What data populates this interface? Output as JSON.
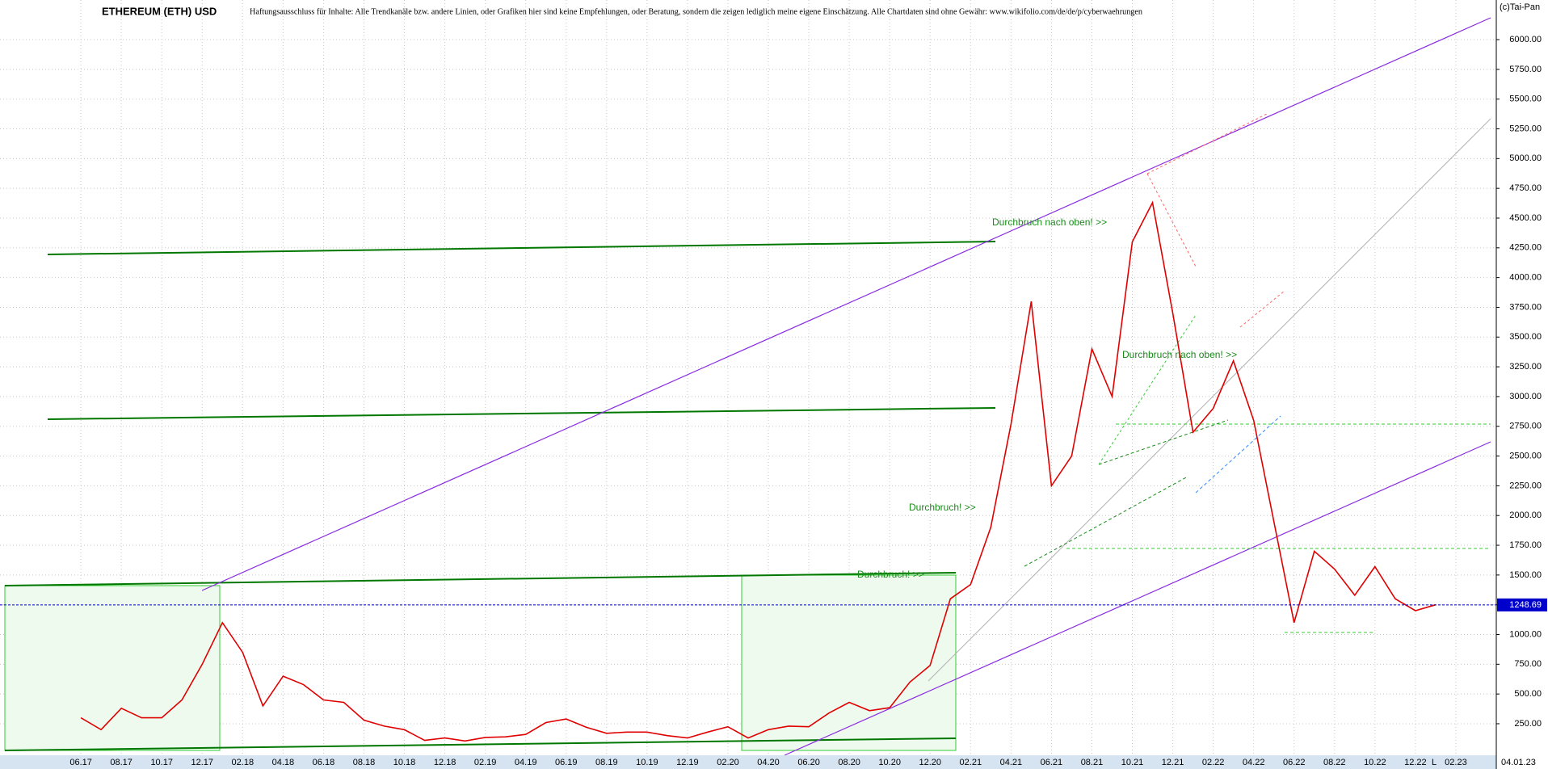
{
  "chart_data": {
    "type": "line",
    "title": "ETHEREUM (ETH) USD",
    "subtitle": "Haftungsausschluss für Inhalte: Alle Trendkanäle bzw. andere Linien, oder Grafiken hier sind keine Empfehlungen, oder Beratung, sondern die zeigen lediglich meine eigene Einschätzung. Alle Chartdaten sind ohne Gewähr:  www.wikifolio.com/de/de/p/cyberwaehrungen",
    "copyright": "(c)Tai-Pan",
    "date": "04.01.23",
    "corner_label": "L",
    "annotations": [
      "Durchbruch nach oben! >>",
      "Durchbruch nach oben! >>",
      "Durchbruch! >>",
      "Durchbruch! >>"
    ],
    "color": "#e00000",
    "x": [
      "06.17",
      "07.17",
      "08.17",
      "09.17",
      "10.17",
      "11.17",
      "12.17",
      "01.18",
      "02.18",
      "03.18",
      "04.18",
      "05.18",
      "06.18",
      "07.18",
      "08.18",
      "09.18",
      "10.18",
      "11.18",
      "12.18",
      "01.19",
      "02.19",
      "03.19",
      "04.19",
      "05.19",
      "06.19",
      "07.19",
      "08.19",
      "09.19",
      "10.19",
      "11.19",
      "12.19",
      "01.20",
      "02.20",
      "03.20",
      "04.20",
      "05.20",
      "06.20",
      "07.20",
      "08.20",
      "09.20",
      "10.20",
      "11.20",
      "12.20",
      "01.21",
      "02.21",
      "03.21",
      "04.21",
      "05.21",
      "06.21",
      "07.21",
      "08.21",
      "09.21",
      "10.21",
      "11.21",
      "12.21",
      "01.22",
      "02.22",
      "03.22",
      "04.22",
      "05.22",
      "06.22",
      "07.22",
      "08.22",
      "09.22",
      "10.22",
      "11.22",
      "12.22",
      "01.23"
    ],
    "values": [
      300,
      200,
      380,
      300,
      300,
      450,
      750,
      1100,
      850,
      400,
      650,
      580,
      450,
      430,
      280,
      230,
      200,
      110,
      130,
      105,
      135,
      140,
      160,
      260,
      290,
      220,
      170,
      180,
      180,
      150,
      130,
      180,
      225,
      130,
      200,
      230,
      225,
      340,
      430,
      360,
      385,
      600,
      740,
      1300,
      1420,
      1900,
      2770,
      3800,
      2250,
      2500,
      3400,
      3000,
      4300,
      4630,
      3700,
      2700,
      2900,
      3300,
      2800,
      1950,
      1100,
      1700,
      1550,
      1330,
      1570,
      1300,
      1200,
      1250
    ],
    "last_value": 1248.69,
    "xlim": [
      "02.17",
      "04.23"
    ],
    "xticks": [
      "06.17",
      "08.17",
      "10.17",
      "12.17",
      "02.18",
      "04.18",
      "06.18",
      "08.18",
      "10.18",
      "12.18",
      "02.19",
      "04.19",
      "06.19",
      "08.19",
      "10.19",
      "12.19",
      "02.20",
      "04.20",
      "06.20",
      "08.20",
      "10.20",
      "12.20",
      "02.21",
      "04.21",
      "06.21",
      "08.21",
      "10.21",
      "12.21",
      "02.22",
      "04.22",
      "06.22",
      "08.22",
      "10.22",
      "12.22",
      "02.23"
    ],
    "ylim": [
      -15,
      6333
    ],
    "yticks": [
      {
        "value": 250,
        "label": "250.00"
      },
      {
        "value": 500,
        "label": "500.00"
      },
      {
        "value": 750,
        "label": "750.00"
      },
      {
        "value": 1000,
        "label": "1000.00"
      },
      {
        "value": 1250,
        "label": "1250.00"
      },
      {
        "value": 1500,
        "label": "1500.00"
      },
      {
        "value": 1750,
        "label": "1750.00"
      },
      {
        "value": 2000,
        "label": "2000.00"
      },
      {
        "value": 2250,
        "label": "2250.00"
      },
      {
        "value": 2500,
        "label": "2500.00"
      },
      {
        "value": 2750,
        "label": "2750.00"
      },
      {
        "value": 3000,
        "label": "3000.00"
      },
      {
        "value": 3250,
        "label": "3250.00"
      },
      {
        "value": 3500,
        "label": "3500.00"
      },
      {
        "value": 3750,
        "label": "3750.00"
      },
      {
        "value": 4000,
        "label": "4000.00"
      },
      {
        "value": 4250,
        "label": "4250.00"
      },
      {
        "value": 4500,
        "label": "4500.00"
      },
      {
        "value": 4750,
        "label": "4750.00"
      },
      {
        "value": 5000,
        "label": "5000.00"
      },
      {
        "value": 5250,
        "label": "5250.00"
      },
      {
        "value": 5500,
        "label": "5500.00"
      },
      {
        "value": 5750,
        "label": "5750.00"
      },
      {
        "value": 6000,
        "label": "6000.00"
      }
    ],
    "grid": true
  }
}
